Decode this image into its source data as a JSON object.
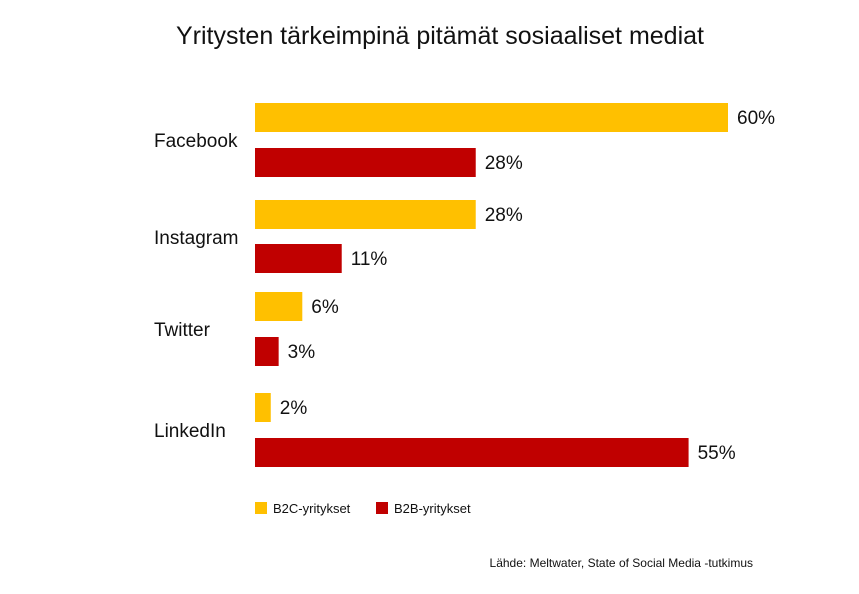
{
  "chart_data": {
    "type": "bar",
    "orientation": "horizontal",
    "title": "Yritysten tärkeimpinä pitämät sosiaaliset mediat",
    "categories": [
      "Facebook",
      "Instagram",
      "Twitter",
      "LinkedIn"
    ],
    "series": [
      {
        "name": "B2C-yritykset",
        "color": "#FFC000",
        "values": [
          60,
          28,
          6,
          2
        ]
      },
      {
        "name": "B2B-yritykset",
        "color": "#C00000",
        "values": [
          28,
          11,
          3,
          55
        ]
      }
    ],
    "value_suffix": "%",
    "xlim": [
      0,
      60
    ],
    "grid": false,
    "legend_position": "bottom-left",
    "source": "Lähde: Meltwater, State of Social Media -tutkimus"
  }
}
